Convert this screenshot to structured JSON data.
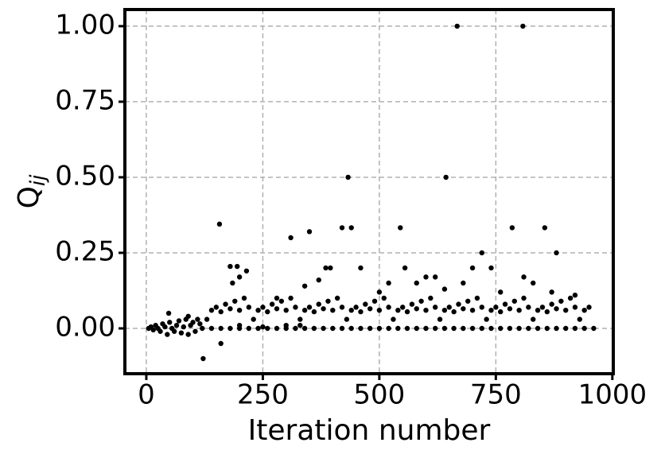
{
  "chart_data": {
    "type": "scatter",
    "xlabel": "Iteration number",
    "ylabel": "Q",
    "ylabel_subscript": "ij",
    "color": "#000000",
    "grid": true,
    "xlim": [
      -46,
      1002
    ],
    "ylim": [
      -0.15,
      1.055
    ],
    "xticks": [
      0,
      250,
      500,
      750,
      1000
    ],
    "yticks": [
      {
        "value": 0,
        "label": "0.00"
      },
      {
        "value": 0.25,
        "label": "0.25"
      },
      {
        "value": 0.5,
        "label": "0.50"
      },
      {
        "value": 0.75,
        "label": "0.75"
      },
      {
        "value": 1,
        "label": "1.00"
      }
    ],
    "x": [
      5,
      10,
      15,
      20,
      25,
      30,
      35,
      40,
      45,
      50,
      55,
      60,
      65,
      70,
      75,
      80,
      85,
      90,
      95,
      100,
      105,
      110,
      115,
      48,
      90,
      120,
      140,
      160,
      180,
      200,
      220,
      240,
      260,
      280,
      300,
      320,
      340,
      360,
      380,
      400,
      420,
      440,
      460,
      480,
      500,
      520,
      540,
      560,
      580,
      600,
      620,
      640,
      660,
      680,
      700,
      720,
      740,
      760,
      780,
      800,
      820,
      840,
      860,
      880,
      900,
      920,
      940,
      960,
      130,
      140,
      150,
      160,
      170,
      180,
      190,
      200,
      210,
      220,
      230,
      240,
      250,
      260,
      270,
      280,
      290,
      300,
      310,
      320,
      330,
      340,
      350,
      360,
      370,
      380,
      390,
      400,
      410,
      420,
      430,
      440,
      450,
      460,
      470,
      480,
      490,
      500,
      510,
      520,
      530,
      540,
      550,
      560,
      570,
      580,
      590,
      600,
      610,
      620,
      630,
      640,
      650,
      660,
      670,
      680,
      690,
      700,
      710,
      720,
      730,
      740,
      750,
      760,
      770,
      780,
      790,
      800,
      810,
      820,
      830,
      840,
      850,
      860,
      870,
      880,
      890,
      900,
      910,
      920,
      930,
      940,
      950,
      667,
      808,
      433,
      643,
      157,
      310,
      350,
      420,
      440,
      545,
      785,
      855,
      720,
      880,
      122,
      160,
      180,
      195,
      215,
      185,
      200,
      385,
      395,
      460,
      555,
      700,
      740,
      200,
      250,
      300,
      330,
      600,
      620,
      640,
      580,
      810,
      830,
      870,
      920,
      370,
      340,
      280,
      500,
      520,
      680,
      760
    ],
    "values": [
      0,
      0.005,
      -0.005,
      0.01,
      0,
      -0.01,
      0.015,
      0.005,
      -0.02,
      0.02,
      0,
      -0.01,
      0.01,
      0.025,
      -0.015,
      0.005,
      0.03,
      -0.02,
      0.01,
      0.02,
      -0.01,
      0.03,
      0.015,
      0.05,
      0.04,
      0,
      0,
      0,
      0,
      0,
      0,
      0,
      0,
      0,
      0,
      0,
      0,
      0,
      0,
      0,
      0,
      0,
      0,
      0,
      0,
      0,
      0,
      0,
      0,
      0,
      0,
      0,
      0,
      0,
      0,
      0,
      0,
      0,
      0,
      0,
      0,
      0,
      0,
      0,
      0,
      0,
      0,
      0,
      0.03,
      0.06,
      0.07,
      0.055,
      0.08,
      0.065,
      0.09,
      0.06,
      0.1,
      0.07,
      0.03,
      0.06,
      0.07,
      0.055,
      0.08,
      0.065,
      0.09,
      0.06,
      0.1,
      0.07,
      0.03,
      0.06,
      0.07,
      0.055,
      0.08,
      0.065,
      0.09,
      0.06,
      0.1,
      0.07,
      0.03,
      0.06,
      0.07,
      0.055,
      0.08,
      0.065,
      0.09,
      0.06,
      0.1,
      0.07,
      0.03,
      0.06,
      0.07,
      0.055,
      0.08,
      0.065,
      0.09,
      0.06,
      0.1,
      0.07,
      0.03,
      0.06,
      0.07,
      0.055,
      0.08,
      0.065,
      0.09,
      0.06,
      0.1,
      0.07,
      0.03,
      0.06,
      0.07,
      0.055,
      0.08,
      0.065,
      0.09,
      0.06,
      0.1,
      0.07,
      0.03,
      0.06,
      0.07,
      0.055,
      0.08,
      0.065,
      0.09,
      0.06,
      0.1,
      0.07,
      0.03,
      0.06,
      0.07,
      1.0,
      1.0,
      0.5,
      0.5,
      0.345,
      0.3,
      0.32,
      0.333,
      0.333,
      0.333,
      0.333,
      0.333,
      0.25,
      0.25,
      -0.1,
      -0.05,
      0.205,
      0.205,
      0.19,
      0.15,
      0.17,
      0.2,
      0.2,
      0.2,
      0.2,
      0.2,
      0.2,
      0.01,
      0.005,
      0.01,
      0.01,
      0.17,
      0.17,
      0.13,
      0.15,
      0.17,
      0.15,
      0.12,
      0.11,
      0.16,
      0.14,
      0.1,
      0.12,
      0.15,
      0.15,
      0.12
    ]
  }
}
